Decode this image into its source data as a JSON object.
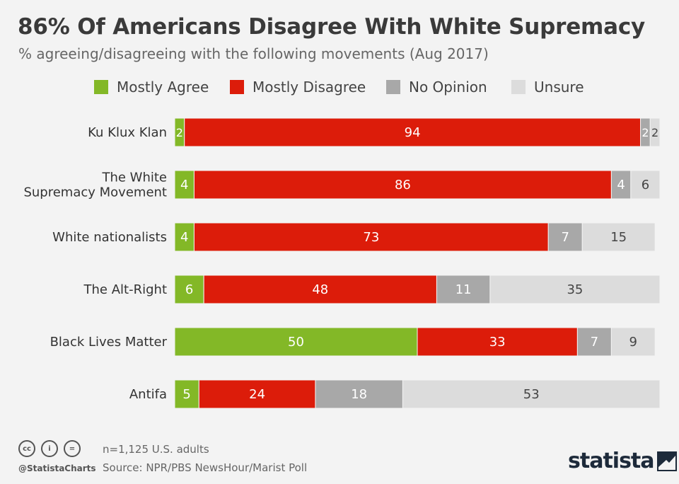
{
  "header": {
    "title": "86% Of Americans Disagree With White Supremacy",
    "subtitle": "% agreeing/disagreeing with the following movements (Aug 2017)"
  },
  "legend": [
    {
      "label": "Mostly Agree",
      "color": "#83b827"
    },
    {
      "label": "Mostly Disagree",
      "color": "#dc1c0a"
    },
    {
      "label": "No Opinion",
      "color": "#a8a8a8"
    },
    {
      "label": "Unsure",
      "color": "#dcdcdc"
    }
  ],
  "chart_data": {
    "type": "bar",
    "orientation": "horizontal",
    "stacked": true,
    "categories": [
      [
        "Ku Klux Klan"
      ],
      [
        "The White",
        "Supremacy Movement"
      ],
      [
        "White nationalists"
      ],
      [
        "The Alt-Right"
      ],
      [
        "Black Lives Matter"
      ],
      [
        "Antifa"
      ]
    ],
    "series": [
      {
        "name": "Mostly Agree",
        "color": "#83b827",
        "label_color": "#ffffff",
        "values": [
          2,
          4,
          4,
          6,
          50,
          5
        ]
      },
      {
        "name": "Mostly Disagree",
        "color": "#dc1c0a",
        "label_color": "#ffffff",
        "values": [
          94,
          86,
          73,
          48,
          33,
          24
        ]
      },
      {
        "name": "No Opinion",
        "color": "#a8a8a8",
        "label_color": "#ffffff",
        "values": [
          2,
          4,
          7,
          11,
          7,
          18
        ]
      },
      {
        "name": "Unsure",
        "color": "#dcdcdc",
        "label_color": "#444444",
        "values": [
          2,
          6,
          15,
          35,
          9,
          53
        ]
      }
    ],
    "xlim": [
      0,
      100
    ],
    "grid": false,
    "legend_position": "top"
  },
  "footer": {
    "note": "n=1,125 U.S. adults",
    "source": "Source: NPR/PBS NewsHour/Marist Poll",
    "handle": "@StatistaCharts",
    "brand": "statista",
    "icons": [
      {
        "name": "cc-icon",
        "glyph": "cc"
      },
      {
        "name": "by-icon",
        "glyph": "i"
      },
      {
        "name": "nd-icon",
        "glyph": "="
      }
    ]
  }
}
